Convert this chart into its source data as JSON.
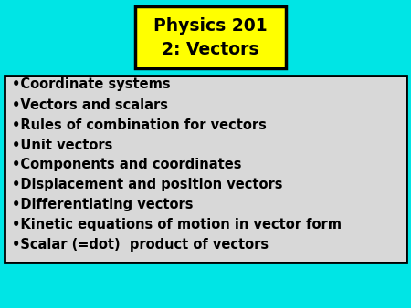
{
  "background_color": "#00E5E5",
  "title_line1": "Physics 201",
  "title_line2": "2: Vectors",
  "title_bg_color": "#FFFF00",
  "title_text_color": "#000000",
  "title_border_color": "#000000",
  "box_bg_color": "#D8D8D8",
  "box_border_color": "#000000",
  "bullet_items": [
    "Coordinate systems",
    "Vectors and scalars",
    "Rules of combination for vectors",
    "Unit vectors",
    "Components and coordinates",
    "Displacement and position vectors",
    "Differentiating vectors",
    "Kinetic equations of motion in vector form",
    "Scalar (=dot)  product of vectors"
  ],
  "bullet_text_color": "#000000",
  "bullet_fontsize": 10.5,
  "title_fontsize": 13.5,
  "fig_width": 4.5,
  "fig_height": 3.38,
  "fig_dpi": 100
}
